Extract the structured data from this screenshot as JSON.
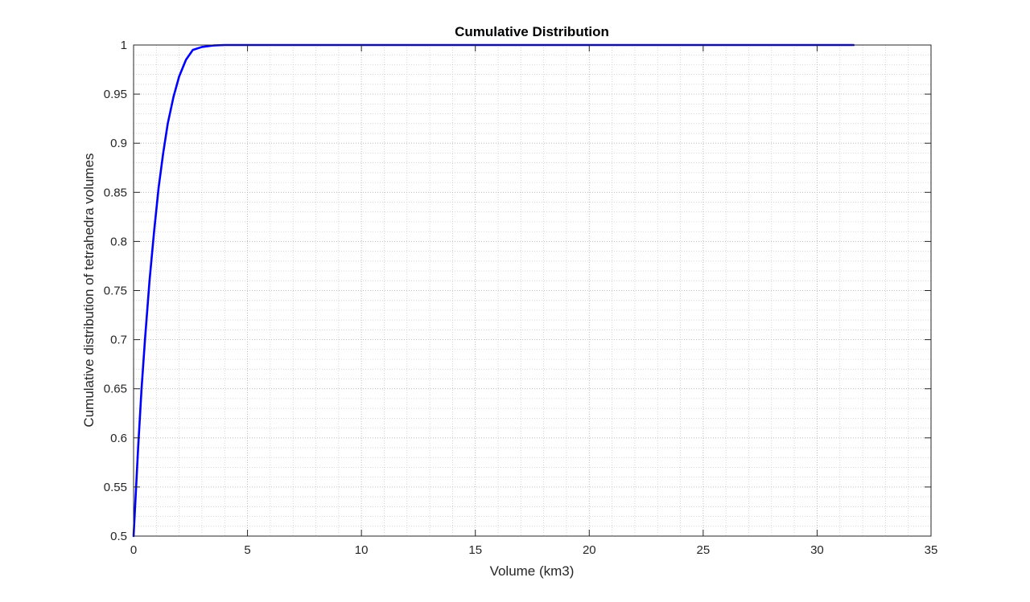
{
  "chart_data": {
    "type": "line",
    "title": "Cumulative Distribution",
    "xlabel": "Volume (km3)",
    "ylabel": "Cumulative distribution of tetrahedra volumes",
    "xlim": [
      0,
      35
    ],
    "ylim": [
      0.5,
      1
    ],
    "xticks": [
      0,
      5,
      10,
      15,
      20,
      25,
      30,
      35
    ],
    "xtick_labels": [
      "0",
      "5",
      "10",
      "15",
      "20",
      "25",
      "30",
      "35"
    ],
    "yticks": [
      0.5,
      0.55,
      0.6,
      0.65,
      0.7,
      0.75,
      0.8,
      0.85,
      0.9,
      0.95,
      1
    ],
    "ytick_labels": [
      "0.5",
      "0.55",
      "0.6",
      "0.65",
      "0.7",
      "0.75",
      "0.8",
      "0.85",
      "0.9",
      "0.95",
      "1"
    ],
    "grid": true,
    "minor_grid": true,
    "box": true,
    "series": [
      {
        "color": "#0000ff",
        "x": [
          0,
          0.1,
          0.2,
          0.35,
          0.5,
          0.7,
          0.9,
          1.1,
          1.3,
          1.5,
          1.75,
          2.0,
          2.3,
          2.6,
          3.0,
          3.5,
          4.0,
          5.0,
          10.0,
          15.0,
          20.0,
          25.0,
          30.0,
          31.6
        ],
        "y": [
          0.5,
          0.545,
          0.59,
          0.65,
          0.7,
          0.76,
          0.81,
          0.855,
          0.89,
          0.92,
          0.947,
          0.968,
          0.985,
          0.995,
          0.998,
          0.9995,
          1.0,
          1.0,
          1.0,
          1.0,
          1.0,
          1.0,
          1.0,
          1.0
        ]
      }
    ]
  }
}
